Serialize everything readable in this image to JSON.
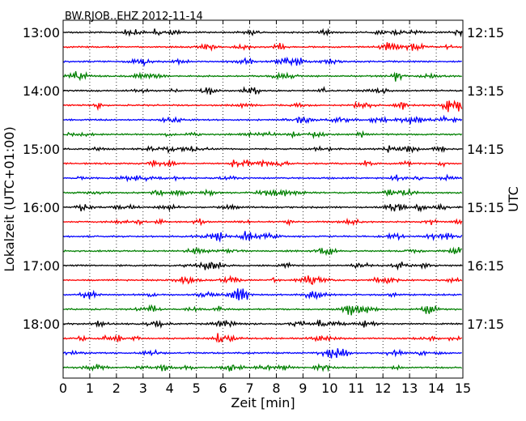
{
  "chart_data": {
    "type": "line",
    "title": "BW.RJOB..EHZ 2012-11-14",
    "xlabel": "Zeit  [min]",
    "ylabel_left": "Lokalzeit (UTC+01:00)",
    "ylabel_right": "UTC",
    "xlim": [
      0,
      15
    ],
    "x_ticks": [
      "0",
      "1",
      "2",
      "3",
      "4",
      "5",
      "6",
      "7",
      "8",
      "9",
      "10",
      "11",
      "12",
      "13",
      "14",
      "15"
    ],
    "left_tick_labels": [
      "13:00",
      "14:00",
      "15:00",
      "16:00",
      "17:00",
      "18:00"
    ],
    "right_tick_labels": [
      "12:15",
      "13:15",
      "14:15",
      "15:15",
      "16:15",
      "17:15"
    ],
    "trace_colors": [
      "#000000",
      "#ff0000",
      "#0000ff",
      "#008000"
    ],
    "trace_count": 24,
    "trace_interval_min": 15,
    "vertical_grid": "dotted",
    "amplitude_hint": "small random seismic noise"
  }
}
